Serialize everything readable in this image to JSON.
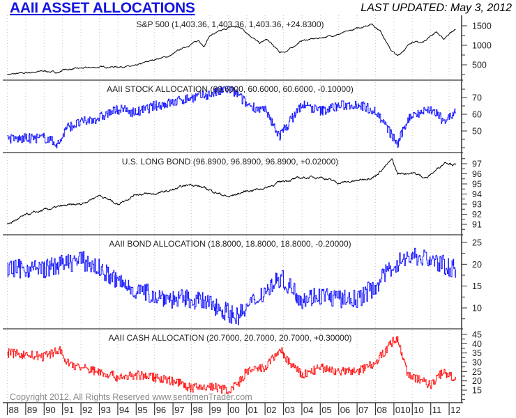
{
  "header": {
    "title": "AAII ASSET ALLOCATIONS",
    "last_updated": "LAST UPDATED:  May 3, 2012"
  },
  "footer": {
    "copyright": "Copyright 2012, All Rights Reserved  www.sentimenTrader.com"
  },
  "chart_data": {
    "type": "line",
    "x_tick_labels": [
      "88",
      "89",
      "90",
      "91",
      "92",
      "93",
      "94",
      "95",
      "96",
      "97",
      "98",
      "99",
      "00",
      "01",
      "02",
      "03",
      "04",
      "05",
      "06",
      "07",
      "08",
      "010",
      "10",
      "11",
      "12"
    ],
    "x_range": [
      1988,
      2012.35
    ],
    "panels": [
      {
        "name": "sp500",
        "title": "S&P 500 (1,403.36, 1,403.36, 1,403.36, +24.8300)",
        "color": "#000000",
        "ylim": [
          200,
          1650
        ],
        "ticks": [
          500,
          1000,
          1500
        ],
        "noise": 25,
        "points": [
          [
            1988,
            250
          ],
          [
            1989,
            290
          ],
          [
            1990,
            340
          ],
          [
            1990.8,
            300
          ],
          [
            1991,
            370
          ],
          [
            1992,
            410
          ],
          [
            1993,
            440
          ],
          [
            1994.9,
            460
          ],
          [
            1995.5,
            560
          ],
          [
            1996,
            640
          ],
          [
            1996.8,
            720
          ],
          [
            1997.5,
            920
          ],
          [
            1998.4,
            1120
          ],
          [
            1998.7,
            980
          ],
          [
            1999,
            1250
          ],
          [
            2000.2,
            1480
          ],
          [
            2000.7,
            1450
          ],
          [
            2001.2,
            1250
          ],
          [
            2001.7,
            1050
          ],
          [
            2002.1,
            1150
          ],
          [
            2002.8,
            820
          ],
          [
            2003.2,
            850
          ],
          [
            2004,
            1120
          ],
          [
            2005,
            1190
          ],
          [
            2006,
            1280
          ],
          [
            2007,
            1430
          ],
          [
            2007.8,
            1550
          ],
          [
            2008.3,
            1350
          ],
          [
            2008.8,
            900
          ],
          [
            2009.2,
            720
          ],
          [
            2010,
            1100
          ],
          [
            2010.5,
            1060
          ],
          [
            2011.3,
            1350
          ],
          [
            2011.7,
            1150
          ],
          [
            2012,
            1300
          ],
          [
            2012.35,
            1403
          ]
        ]
      },
      {
        "name": "stock-allocation",
        "title": "AAII STOCK ALLOCATION (60.6000, 60.6000, 60.6000, -0.10000)",
        "color": "#1a1aff",
        "ylim": [
          38,
          80
        ],
        "ticks": [
          50,
          60,
          70
        ],
        "noise": 3,
        "points": [
          [
            1988,
            45
          ],
          [
            1990,
            46
          ],
          [
            1990.8,
            42
          ],
          [
            1991.2,
            52
          ],
          [
            1992,
            55
          ],
          [
            1993,
            58
          ],
          [
            1994,
            63
          ],
          [
            1995,
            61
          ],
          [
            1996,
            65
          ],
          [
            1997,
            67
          ],
          [
            1998,
            70
          ],
          [
            1999,
            72
          ],
          [
            2000,
            75
          ],
          [
            2000.5,
            72
          ],
          [
            2001,
            66
          ],
          [
            2002,
            62
          ],
          [
            2002.8,
            47
          ],
          [
            2003.3,
            55
          ],
          [
            2004,
            66
          ],
          [
            2005,
            62
          ],
          [
            2006,
            65
          ],
          [
            2007,
            66
          ],
          [
            2008,
            62
          ],
          [
            2008.9,
            47
          ],
          [
            2009.2,
            42
          ],
          [
            2009.7,
            56
          ],
          [
            2010,
            60
          ],
          [
            2011,
            63
          ],
          [
            2011.7,
            56
          ],
          [
            2012.35,
            60.6
          ]
        ]
      },
      {
        "name": "us-long-bond",
        "title": "U.S. LONG BOND (96.8900, 96.8900, 96.8900, +0.02000)",
        "color": "#000000",
        "ylim": [
          90.3,
          97.8
        ],
        "ticks": [
          91,
          92,
          93,
          94,
          95,
          96,
          97
        ],
        "noise": 0.15,
        "points": [
          [
            1988,
            91
          ],
          [
            1989,
            91.9
          ],
          [
            1990,
            92.4
          ],
          [
            1991,
            92.8
          ],
          [
            1992,
            93
          ],
          [
            1993,
            93.9
          ],
          [
            1994,
            93
          ],
          [
            1995,
            94
          ],
          [
            1996,
            94
          ],
          [
            1997,
            94.4
          ],
          [
            1998,
            95
          ],
          [
            1999,
            94.4
          ],
          [
            2000,
            93.7
          ],
          [
            2001,
            94.3
          ],
          [
            2002,
            94.6
          ],
          [
            2003,
            95.3
          ],
          [
            2004,
            95.6
          ],
          [
            2005,
            95.7
          ],
          [
            2006,
            95.1
          ],
          [
            2007,
            95.3
          ],
          [
            2008,
            95.8
          ],
          [
            2008.9,
            97.4
          ],
          [
            2009.2,
            96
          ],
          [
            2010,
            96.1
          ],
          [
            2010.8,
            95.6
          ],
          [
            2011.8,
            97.2
          ],
          [
            2012.35,
            96.89
          ]
        ]
      },
      {
        "name": "bond-allocation",
        "title": "AAII BOND ALLOCATION (18.8000, 18.8000, 18.8000, -0.20000)",
        "color": "#1a1aff",
        "ylim": [
          5,
          27
        ],
        "ticks": [
          10,
          15,
          20,
          25
        ],
        "noise": 2.2,
        "points": [
          [
            1988,
            19
          ],
          [
            1990,
            19
          ],
          [
            1991,
            20
          ],
          [
            1992,
            21
          ],
          [
            1993,
            19
          ],
          [
            1994,
            16
          ],
          [
            1995,
            14
          ],
          [
            1996,
            13
          ],
          [
            1997,
            12
          ],
          [
            1998,
            12
          ],
          [
            1999,
            11
          ],
          [
            2000,
            9
          ],
          [
            2000.5,
            8
          ],
          [
            2001,
            10
          ],
          [
            2002,
            14
          ],
          [
            2002.8,
            17
          ],
          [
            2003.3,
            15
          ],
          [
            2004,
            12
          ],
          [
            2005,
            13
          ],
          [
            2006,
            12
          ],
          [
            2007,
            12
          ],
          [
            2008,
            15
          ],
          [
            2009,
            20
          ],
          [
            2010,
            22
          ],
          [
            2011,
            21
          ],
          [
            2012.35,
            18.8
          ]
        ]
      },
      {
        "name": "cash-allocation",
        "title": "AAII CASH ALLOCATION (20.7000, 20.7000, 20.7000, +0.30000)",
        "color": "#ff1a1a",
        "ylim": [
          8,
          47
        ],
        "ticks": [
          15,
          20,
          25,
          30,
          35,
          40,
          45
        ],
        "noise": 2.5,
        "points": [
          [
            1988,
            35
          ],
          [
            1990,
            33
          ],
          [
            1990.8,
            37
          ],
          [
            1991.2,
            30
          ],
          [
            1992,
            27
          ],
          [
            1993,
            25
          ],
          [
            1994,
            22
          ],
          [
            1995,
            23
          ],
          [
            1996,
            22
          ],
          [
            1997,
            20
          ],
          [
            1998,
            16
          ],
          [
            1999,
            17
          ],
          [
            2000,
            15
          ],
          [
            2000.5,
            18
          ],
          [
            2001,
            25
          ],
          [
            2002,
            27
          ],
          [
            2002.8,
            37
          ],
          [
            2003.3,
            30
          ],
          [
            2004,
            23
          ],
          [
            2005,
            27
          ],
          [
            2006,
            25
          ],
          [
            2007,
            25
          ],
          [
            2008,
            30
          ],
          [
            2009,
            42
          ],
          [
            2009.2,
            43
          ],
          [
            2009.7,
            25
          ],
          [
            2010,
            22
          ],
          [
            2011,
            18
          ],
          [
            2011.7,
            25
          ],
          [
            2012.35,
            20.7
          ]
        ]
      }
    ]
  }
}
